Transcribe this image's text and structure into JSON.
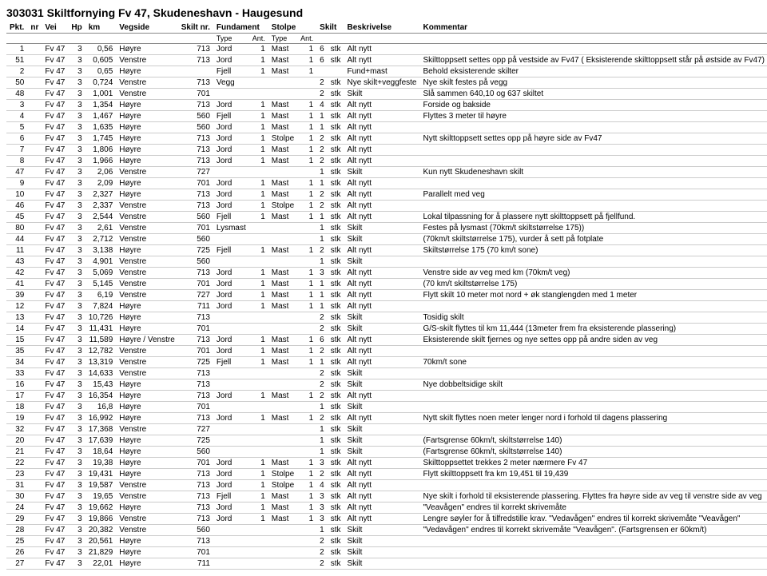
{
  "title": "303031 Skiltfornying Fv 47, Skudeneshavn - Haugesund",
  "headers": {
    "main": [
      "Pkt.",
      "nr",
      "Vei",
      "Hp",
      "km",
      "Vegside",
      "Skilt nr.",
      "Fundament",
      "",
      "Stolpe",
      "",
      "Skilt",
      "",
      "Beskrivelse",
      "Kommentar"
    ],
    "sub": [
      "",
      "",
      "",
      "",
      "",
      "",
      "",
      "Type",
      "Ant.",
      "Type",
      "Ant.",
      "",
      ""
    ]
  },
  "rows": [
    {
      "pkt": "1",
      "vei": "Fv 47",
      "hp": "3",
      "km": "0,56",
      "vegside": "Høyre",
      "skiltnr": "713",
      "ftype": "Jord",
      "fant": "1",
      "stype": "Mast",
      "sant": "1",
      "sk": "6",
      "unit": "stk",
      "besk": "Alt nytt",
      "komm": ""
    },
    {
      "pkt": "51",
      "vei": "Fv 47",
      "hp": "3",
      "km": "0,605",
      "vegside": "Venstre",
      "skiltnr": "713",
      "ftype": "Jord",
      "fant": "1",
      "stype": "Mast",
      "sant": "1",
      "sk": "6",
      "unit": "stk",
      "besk": "Alt nytt",
      "komm": "Skilttoppsett settes opp på vestside av Fv47 ( Eksisterende skilttoppsett står på østside av Fv47)"
    },
    {
      "pkt": "2",
      "vei": "Fv 47",
      "hp": "3",
      "km": "0,65",
      "vegside": "Høyre",
      "skiltnr": "",
      "ftype": "Fjell",
      "fant": "1",
      "stype": "Mast",
      "sant": "1",
      "sk": "",
      "unit": "",
      "besk": "Fund+mast",
      "komm": "Behold eksisterende skilter"
    },
    {
      "pkt": "50",
      "vei": "Fv 47",
      "hp": "3",
      "km": "0,724",
      "vegside": "Venstre",
      "skiltnr": "713",
      "ftype": "Vegg",
      "fant": "",
      "stype": "",
      "sant": "",
      "sk": "2",
      "unit": "stk",
      "besk": "Nye skilt+veggfeste",
      "komm": "Nye skilt festes på vegg"
    },
    {
      "pkt": "48",
      "vei": "Fv 47",
      "hp": "3",
      "km": "1,001",
      "vegside": "Venstre",
      "skiltnr": "701",
      "ftype": "",
      "fant": "",
      "stype": "",
      "sant": "",
      "sk": "2",
      "unit": "stk",
      "besk": "Skilt",
      "komm": "Slå sammen 640,10 og 637 skiltet"
    },
    {
      "pkt": "3",
      "vei": "Fv 47",
      "hp": "3",
      "km": "1,354",
      "vegside": "Høyre",
      "skiltnr": "713",
      "ftype": "Jord",
      "fant": "1",
      "stype": "Mast",
      "sant": "1",
      "sk": "4",
      "unit": "stk",
      "besk": "Alt nytt",
      "komm": "Forside og bakside"
    },
    {
      "pkt": "4",
      "vei": "Fv 47",
      "hp": "3",
      "km": "1,467",
      "vegside": "Høyre",
      "skiltnr": "560",
      "ftype": "Fjell",
      "fant": "1",
      "stype": "Mast",
      "sant": "1",
      "sk": "1",
      "unit": "stk",
      "besk": "Alt nytt",
      "komm": "Flyttes 3 meter til høyre"
    },
    {
      "pkt": "5",
      "vei": "Fv 47",
      "hp": "3",
      "km": "1,635",
      "vegside": "Høyre",
      "skiltnr": "560",
      "ftype": "Jord",
      "fant": "1",
      "stype": "Mast",
      "sant": "1",
      "sk": "1",
      "unit": "stk",
      "besk": "Alt nytt",
      "komm": ""
    },
    {
      "pkt": "6",
      "vei": "Fv 47",
      "hp": "3",
      "km": "1,745",
      "vegside": "Høyre",
      "skiltnr": "713",
      "ftype": "Jord",
      "fant": "1",
      "stype": "Stolpe",
      "sant": "1",
      "sk": "2",
      "unit": "stk",
      "besk": "Alt nytt",
      "komm": "Nytt skilttoppsett settes opp på høyre side av Fv47"
    },
    {
      "pkt": "7",
      "vei": "Fv 47",
      "hp": "3",
      "km": "1,806",
      "vegside": "Høyre",
      "skiltnr": "713",
      "ftype": "Jord",
      "fant": "1",
      "stype": "Mast",
      "sant": "1",
      "sk": "2",
      "unit": "stk",
      "besk": "Alt nytt",
      "komm": ""
    },
    {
      "pkt": "8",
      "vei": "Fv 47",
      "hp": "3",
      "km": "1,966",
      "vegside": "Høyre",
      "skiltnr": "713",
      "ftype": "Jord",
      "fant": "1",
      "stype": "Mast",
      "sant": "1",
      "sk": "2",
      "unit": "stk",
      "besk": "Alt nytt",
      "komm": ""
    },
    {
      "pkt": "47",
      "vei": "Fv 47",
      "hp": "3",
      "km": "2,06",
      "vegside": "Venstre",
      "skiltnr": "727",
      "ftype": "",
      "fant": "",
      "stype": "",
      "sant": "",
      "sk": "1",
      "unit": "stk",
      "besk": "Skilt",
      "komm": "Kun nytt Skudeneshavn skilt"
    },
    {
      "pkt": "9",
      "vei": "Fv 47",
      "hp": "3",
      "km": "2,09",
      "vegside": "Høyre",
      "skiltnr": "701",
      "ftype": "Jord",
      "fant": "1",
      "stype": "Mast",
      "sant": "1",
      "sk": "1",
      "unit": "stk",
      "besk": "Alt nytt",
      "komm": ""
    },
    {
      "pkt": "10",
      "vei": "Fv 47",
      "hp": "3",
      "km": "2,327",
      "vegside": "Høyre",
      "skiltnr": "713",
      "ftype": "Jord",
      "fant": "1",
      "stype": "Mast",
      "sant": "1",
      "sk": "2",
      "unit": "stk",
      "besk": "Alt nytt",
      "komm": "Parallelt med veg"
    },
    {
      "pkt": "46",
      "vei": "Fv 47",
      "hp": "3",
      "km": "2,337",
      "vegside": "Venstre",
      "skiltnr": "713",
      "ftype": "Jord",
      "fant": "1",
      "stype": "Stolpe",
      "sant": "1",
      "sk": "2",
      "unit": "stk",
      "besk": "Alt nytt",
      "komm": ""
    },
    {
      "pkt": "45",
      "vei": "Fv 47",
      "hp": "3",
      "km": "2,544",
      "vegside": "Venstre",
      "skiltnr": "560",
      "ftype": "Fjell",
      "fant": "1",
      "stype": "Mast",
      "sant": "1",
      "sk": "1",
      "unit": "stk",
      "besk": "Alt nytt",
      "komm": "Lokal tilpassning for å plassere nytt skilttoppsett på fjellfund."
    },
    {
      "pkt": "80",
      "vei": "Fv 47",
      "hp": "3",
      "km": "2,61",
      "vegside": "Venstre",
      "skiltnr": "701",
      "ftype": "Lysmast",
      "fant": "",
      "stype": "",
      "sant": "",
      "sk": "1",
      "unit": "stk",
      "besk": "Skilt",
      "komm": "Festes på lysmast (70km/t skiltstørrelse 175))"
    },
    {
      "pkt": "44",
      "vei": "Fv 47",
      "hp": "3",
      "km": "2,712",
      "vegside": "Venstre",
      "skiltnr": "560",
      "ftype": "",
      "fant": "",
      "stype": "",
      "sant": "",
      "sk": "1",
      "unit": "stk",
      "besk": "Skilt",
      "komm": "(70km/t skiltstørrelse 175), vurder å sett på fotplate"
    },
    {
      "pkt": "11",
      "vei": "Fv 47",
      "hp": "3",
      "km": "3,138",
      "vegside": "Høyre",
      "skiltnr": "725",
      "ftype": "Fjell",
      "fant": "1",
      "stype": "Mast",
      "sant": "1",
      "sk": "2",
      "unit": "stk",
      "besk": "Alt nytt",
      "komm": "Skiltstørrelse 175  (70 km/t sone)"
    },
    {
      "pkt": "43",
      "vei": "Fv 47",
      "hp": "3",
      "km": "4,901",
      "vegside": "Venstre",
      "skiltnr": "560",
      "ftype": "",
      "fant": "",
      "stype": "",
      "sant": "",
      "sk": "1",
      "unit": "stk",
      "besk": "Skilt",
      "komm": ""
    },
    {
      "pkt": "42",
      "vei": "Fv 47",
      "hp": "3",
      "km": "5,069",
      "vegside": "Venstre",
      "skiltnr": "713",
      "ftype": "Jord",
      "fant": "1",
      "stype": "Mast",
      "sant": "1",
      "sk": "3",
      "unit": "stk",
      "besk": "Alt nytt",
      "komm": "Venstre side av veg med km (70km/t veg)"
    },
    {
      "pkt": "41",
      "vei": "Fv 47",
      "hp": "3",
      "km": "5,145",
      "vegside": "Venstre",
      "skiltnr": "701",
      "ftype": "Jord",
      "fant": "1",
      "stype": "Mast",
      "sant": "1",
      "sk": "1",
      "unit": "stk",
      "besk": "Alt nytt",
      "komm": "(70 km/t skiltstørrelse 175)"
    },
    {
      "pkt": "39",
      "vei": "Fv 47",
      "hp": "3",
      "km": "6,19",
      "vegside": "Venstre",
      "skiltnr": "727",
      "ftype": "Jord",
      "fant": "1",
      "stype": "Mast",
      "sant": "1",
      "sk": "1",
      "unit": "stk",
      "besk": "Alt nytt",
      "komm": "Flytt skilt 10 meter mot nord + øk stanglengden med 1 meter"
    },
    {
      "pkt": "12",
      "vei": "Fv 47",
      "hp": "3",
      "km": "7,824",
      "vegside": "Høyre",
      "skiltnr": "711",
      "ftype": "Jord",
      "fant": "1",
      "stype": "Mast",
      "sant": "1",
      "sk": "1",
      "unit": "stk",
      "besk": "Alt nytt",
      "komm": ""
    },
    {
      "pkt": "13",
      "vei": "Fv 47",
      "hp": "3",
      "km": "10,726",
      "vegside": "Høyre",
      "skiltnr": "713",
      "ftype": "",
      "fant": "",
      "stype": "",
      "sant": "",
      "sk": "2",
      "unit": "stk",
      "besk": "Skilt",
      "komm": "Tosidig skilt"
    },
    {
      "pkt": "14",
      "vei": "Fv 47",
      "hp": "3",
      "km": "11,431",
      "vegside": "Høyre",
      "skiltnr": "701",
      "ftype": "",
      "fant": "",
      "stype": "",
      "sant": "",
      "sk": "2",
      "unit": "stk",
      "besk": "Skilt",
      "komm": "G/S-skilt flyttes til km 11,444 (13meter frem fra eksisterende plassering)"
    },
    {
      "pkt": "15",
      "vei": "Fv 47",
      "hp": "3",
      "km": "11,589",
      "vegside": "Høyre / Venstre",
      "skiltnr": "713",
      "ftype": "Jord",
      "fant": "1",
      "stype": "Mast",
      "sant": "1",
      "sk": "6",
      "unit": "stk",
      "besk": "Alt nytt",
      "komm": "Eksisterende skilt fjernes og nye settes opp på andre siden av veg"
    },
    {
      "pkt": "35",
      "vei": "Fv 47",
      "hp": "3",
      "km": "12,782",
      "vegside": "Venstre",
      "skiltnr": "701",
      "ftype": "Jord",
      "fant": "1",
      "stype": "Mast",
      "sant": "1",
      "sk": "2",
      "unit": "stk",
      "besk": "Alt nytt",
      "komm": ""
    },
    {
      "pkt": "34",
      "vei": "Fv 47",
      "hp": "3",
      "km": "13,319",
      "vegside": "Venstre",
      "skiltnr": "725",
      "ftype": "Fjell",
      "fant": "1",
      "stype": "Mast",
      "sant": "1",
      "sk": "1",
      "unit": "stk",
      "besk": "Alt nytt",
      "komm": "70km/t sone"
    },
    {
      "pkt": "33",
      "vei": "Fv 47",
      "hp": "3",
      "km": "14,633",
      "vegside": "Venstre",
      "skiltnr": "713",
      "ftype": "",
      "fant": "",
      "stype": "",
      "sant": "",
      "sk": "2",
      "unit": "stk",
      "besk": "Skilt",
      "komm": ""
    },
    {
      "pkt": "16",
      "vei": "Fv 47",
      "hp": "3",
      "km": "15,43",
      "vegside": "Høyre",
      "skiltnr": "713",
      "ftype": "",
      "fant": "",
      "stype": "",
      "sant": "",
      "sk": "2",
      "unit": "stk",
      "besk": "Skilt",
      "komm": "Nye dobbeltsidige skilt"
    },
    {
      "pkt": "17",
      "vei": "Fv 47",
      "hp": "3",
      "km": "16,354",
      "vegside": "Høyre",
      "skiltnr": "713",
      "ftype": "Jord",
      "fant": "1",
      "stype": "Mast",
      "sant": "1",
      "sk": "2",
      "unit": "stk",
      "besk": "Alt nytt",
      "komm": ""
    },
    {
      "pkt": "18",
      "vei": "Fv 47",
      "hp": "3",
      "km": "16,8",
      "vegside": "Høyre",
      "skiltnr": "701",
      "ftype": "",
      "fant": "",
      "stype": "",
      "sant": "",
      "sk": "1",
      "unit": "stk",
      "besk": "Skilt",
      "komm": ""
    },
    {
      "pkt": "19",
      "vei": "Fv 47",
      "hp": "3",
      "km": "16,992",
      "vegside": "Høyre",
      "skiltnr": "713",
      "ftype": "Jord",
      "fant": "1",
      "stype": "Mast",
      "sant": "1",
      "sk": "2",
      "unit": "stk",
      "besk": "Alt nytt",
      "komm": "Nytt skilt flyttes noen meter lenger nord i forhold til dagens plassering"
    },
    {
      "pkt": "32",
      "vei": "Fv 47",
      "hp": "3",
      "km": "17,368",
      "vegside": "Venstre",
      "skiltnr": "727",
      "ftype": "",
      "fant": "",
      "stype": "",
      "sant": "",
      "sk": "1",
      "unit": "stk",
      "besk": "Skilt",
      "komm": ""
    },
    {
      "pkt": "20",
      "vei": "Fv 47",
      "hp": "3",
      "km": "17,639",
      "vegside": "Høyre",
      "skiltnr": "725",
      "ftype": "",
      "fant": "",
      "stype": "",
      "sant": "",
      "sk": "1",
      "unit": "stk",
      "besk": "Skilt",
      "komm": "(Fartsgrense 60km/t, skiltstørrelse 140)"
    },
    {
      "pkt": "21",
      "vei": "Fv 47",
      "hp": "3",
      "km": "18,64",
      "vegside": "Høyre",
      "skiltnr": "560",
      "ftype": "",
      "fant": "",
      "stype": "",
      "sant": "",
      "sk": "1",
      "unit": "stk",
      "besk": "Skilt",
      "komm": "(Fartsgrense 60km/t, skiltstørrelse 140)"
    },
    {
      "pkt": "22",
      "vei": "Fv 47",
      "hp": "3",
      "km": "19,38",
      "vegside": "Høyre",
      "skiltnr": "701",
      "ftype": "Jord",
      "fant": "1",
      "stype": "Mast",
      "sant": "1",
      "sk": "3",
      "unit": "stk",
      "besk": "Alt nytt",
      "komm": "Skilttoppsettet trekkes 2 meter nærmere Fv 47"
    },
    {
      "pkt": "23",
      "vei": "Fv 47",
      "hp": "3",
      "km": "19,431",
      "vegside": "Høyre",
      "skiltnr": "713",
      "ftype": "Jord",
      "fant": "1",
      "stype": "Stolpe",
      "sant": "1",
      "sk": "2",
      "unit": "stk",
      "besk": "Alt nytt",
      "komm": "Flytt skilttoppsett fra km 19,451 til 19,439"
    },
    {
      "pkt": "31",
      "vei": "Fv 47",
      "hp": "3",
      "km": "19,587",
      "vegside": "Venstre",
      "skiltnr": "713",
      "ftype": "Jord",
      "fant": "1",
      "stype": "Stolpe",
      "sant": "1",
      "sk": "4",
      "unit": "stk",
      "besk": "Alt nytt",
      "komm": ""
    },
    {
      "pkt": "30",
      "vei": "Fv 47",
      "hp": "3",
      "km": "19,65",
      "vegside": "Venstre",
      "skiltnr": "713",
      "ftype": "Fjell",
      "fant": "1",
      "stype": "Mast",
      "sant": "1",
      "sk": "3",
      "unit": "stk",
      "besk": "Alt nytt",
      "komm": "Nye skilt i forhold til eksisterende plassering. Flyttes fra høyre side av veg til venstre side av veg"
    },
    {
      "pkt": "24",
      "vei": "Fv 47",
      "hp": "3",
      "km": "19,662",
      "vegside": "Høyre",
      "skiltnr": "713",
      "ftype": "Jord",
      "fant": "1",
      "stype": "Mast",
      "sant": "1",
      "sk": "3",
      "unit": "stk",
      "besk": "Alt nytt",
      "komm": "\"Veavågen\" endres til korrekt skrivemåte"
    },
    {
      "pkt": "29",
      "vei": "Fv 47",
      "hp": "3",
      "km": "19,866",
      "vegside": "Venstre",
      "skiltnr": "713",
      "ftype": "Jord",
      "fant": "1",
      "stype": "Mast",
      "sant": "1",
      "sk": "3",
      "unit": "stk",
      "besk": "Alt nytt",
      "komm": "Lengre søyler for å tilfredstille krav. \"Vedavågen\" endres til korrekt skrivemåte \"Veavågen\""
    },
    {
      "pkt": "28",
      "vei": "Fv 47",
      "hp": "3",
      "km": "20,382",
      "vegside": "Venstre",
      "skiltnr": "560",
      "ftype": "",
      "fant": "",
      "stype": "",
      "sant": "",
      "sk": "1",
      "unit": "stk",
      "besk": "Skilt",
      "komm": "\"Vedavågen\" endres til korrekt skrivemåte \"Veavågen\". (Fartsgrensen er 60km/t)"
    },
    {
      "pkt": "25",
      "vei": "Fv 47",
      "hp": "3",
      "km": "20,561",
      "vegside": "Høyre",
      "skiltnr": "713",
      "ftype": "",
      "fant": "",
      "stype": "",
      "sant": "",
      "sk": "2",
      "unit": "stk",
      "besk": "Skilt",
      "komm": ""
    },
    {
      "pkt": "26",
      "vei": "Fv 47",
      "hp": "3",
      "km": "21,829",
      "vegside": "Høyre",
      "skiltnr": "701",
      "ftype": "",
      "fant": "",
      "stype": "",
      "sant": "",
      "sk": "2",
      "unit": "stk",
      "besk": "Skilt",
      "komm": ""
    },
    {
      "pkt": "27",
      "vei": "Fv 47",
      "hp": "3",
      "km": "22,01",
      "vegside": "Høyre",
      "skiltnr": "711",
      "ftype": "",
      "fant": "",
      "stype": "",
      "sant": "",
      "sk": "2",
      "unit": "stk",
      "besk": "Skilt",
      "komm": ""
    }
  ]
}
